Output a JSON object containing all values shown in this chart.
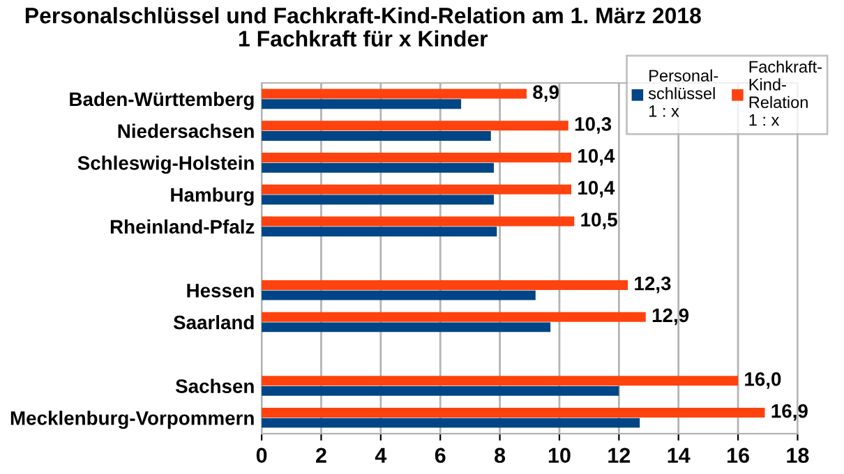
{
  "chart_data": {
    "type": "bar",
    "orientation": "horizontal",
    "title": "Personalschlüssel und Fachkraft-Kind-Relation am 1. März 2018\n1 Fachkraft für x Kinder",
    "categories": [
      "Baden-Württemberg",
      "Niedersachsen",
      "Schleswig-Holstein",
      "Hamburg",
      "Rheinland-Pfalz",
      null,
      "Hessen",
      "Saarland",
      null,
      "Sachsen",
      "Mecklenburg-Vorpommern"
    ],
    "series": [
      {
        "name": "Personal-\nschlüssel\n1 : x",
        "color": "#004586",
        "values": [
          6.7,
          7.7,
          7.8,
          7.8,
          7.9,
          null,
          9.2,
          9.7,
          null,
          12.0,
          12.7
        ]
      },
      {
        "name": "Fachkraft-\nKind-\nRelation\n1 : x",
        "color": "#ff420e",
        "values": [
          8.9,
          10.3,
          10.4,
          10.4,
          10.5,
          null,
          12.3,
          12.9,
          null,
          16.0,
          16.9
        ],
        "value_labels": [
          "8,9",
          "10,3",
          "10,4",
          "10,4",
          "10,5",
          null,
          "12,3",
          "12,9",
          null,
          "16,0",
          "16,9"
        ]
      }
    ],
    "xlim": [
      0,
      18
    ],
    "xticks": [
      0,
      2,
      4,
      6,
      8,
      10,
      12,
      14,
      16,
      18
    ],
    "grid": "x",
    "legend": "top right"
  }
}
